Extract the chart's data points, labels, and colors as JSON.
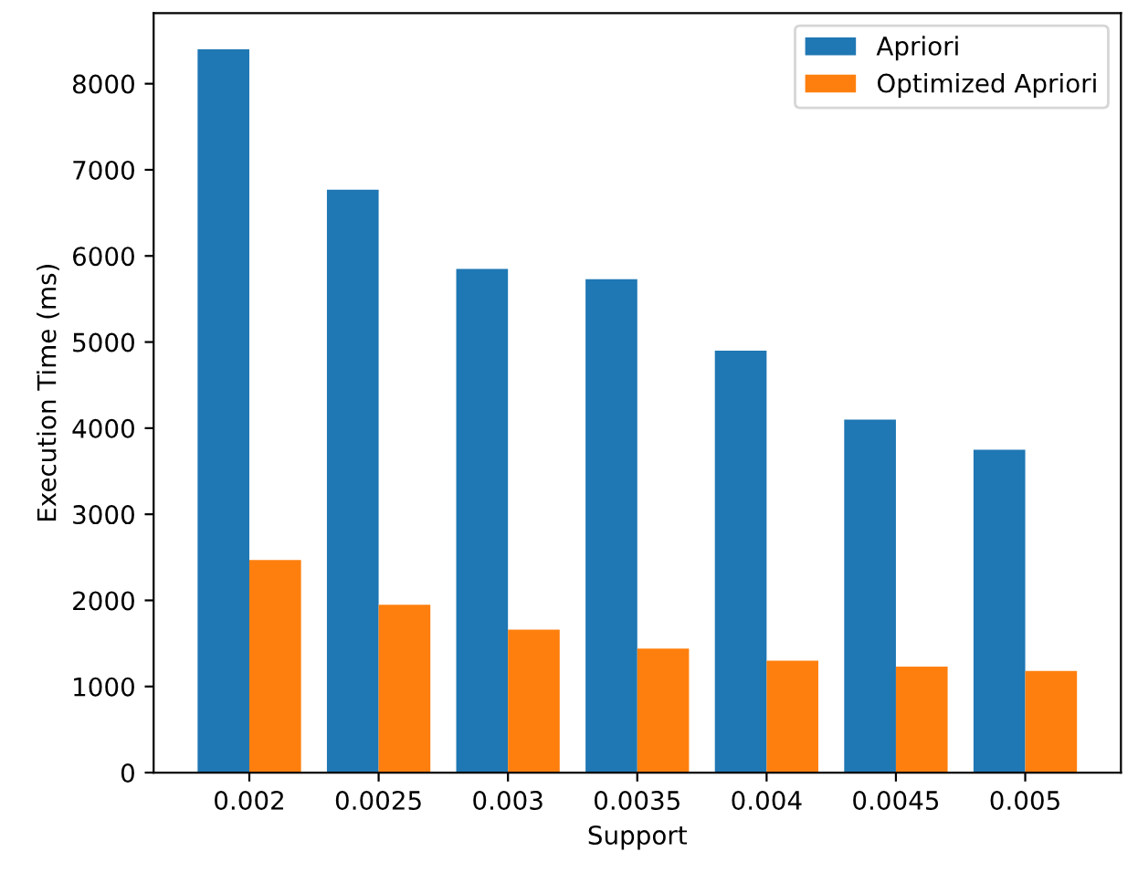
{
  "chart_data": {
    "type": "bar",
    "xlabel": "Support",
    "ylabel": "Execution Time (ms)",
    "categories": [
      "0.002",
      "0.0025",
      "0.003",
      "0.0035",
      "0.004",
      "0.0045",
      "0.005"
    ],
    "series": [
      {
        "name": "Apriori",
        "color": "#1f77b4",
        "values": [
          8400,
          6770,
          5850,
          5730,
          4900,
          4100,
          3750
        ]
      },
      {
        "name": "Optimized Apriori",
        "color": "#ff7f0e",
        "values": [
          2470,
          1950,
          1660,
          1440,
          1300,
          1230,
          1180
        ]
      }
    ],
    "ylim": [
      0,
      8820
    ],
    "yticks": [
      0,
      1000,
      2000,
      3000,
      4000,
      5000,
      6000,
      7000,
      8000
    ],
    "legend": "top right",
    "grid": false
  }
}
